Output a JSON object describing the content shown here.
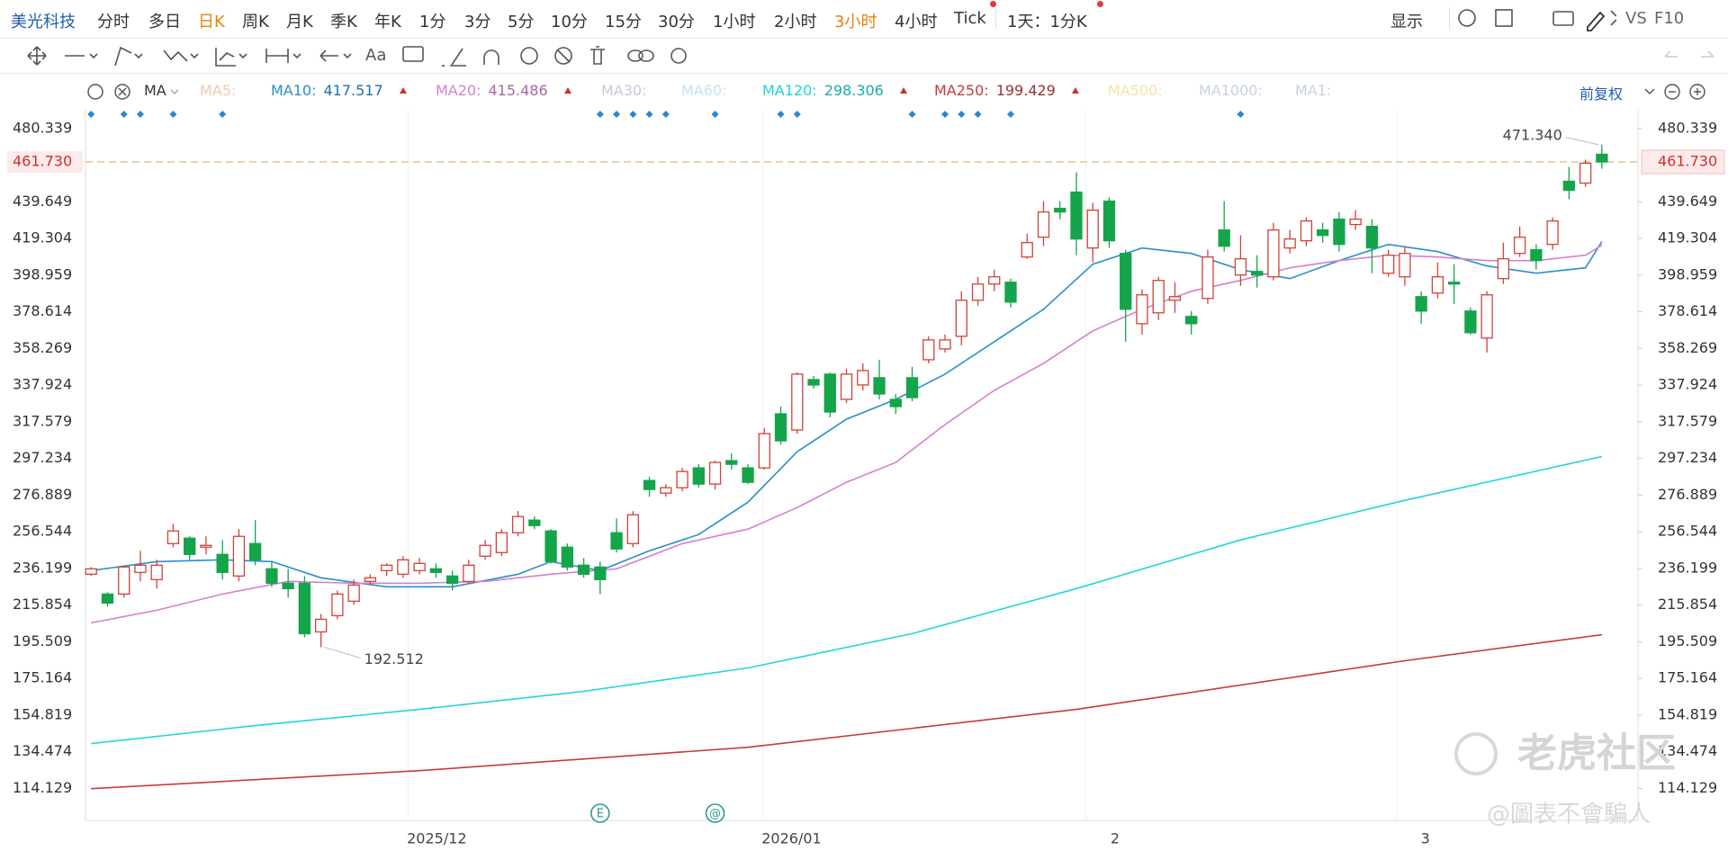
{
  "toolbar": {
    "symbol": "美光科技",
    "periods": [
      {
        "label": "分时"
      },
      {
        "label": "多日"
      },
      {
        "label": "日K",
        "active": true
      },
      {
        "label": "周K"
      },
      {
        "label": "月K"
      },
      {
        "label": "季K"
      },
      {
        "label": "年K"
      },
      {
        "label": "1分"
      },
      {
        "label": "3分"
      },
      {
        "label": "5分"
      },
      {
        "label": "10分"
      },
      {
        "label": "15分"
      },
      {
        "label": "30分"
      },
      {
        "label": "1小时"
      },
      {
        "label": "2小时"
      },
      {
        "label": "3小时",
        "active": true
      },
      {
        "label": "4小时"
      },
      {
        "label": "Tick"
      },
      {
        "label": "1天：1分K"
      }
    ],
    "display": "显示",
    "vs": "VS",
    "f10": "F10"
  },
  "drawing_toolbar": {
    "text_tool": "Aa"
  },
  "adjust": "前复权",
  "watermark": {
    "brand": "老虎社区",
    "handle": "@圖表不會騙人"
  },
  "chart_data": {
    "type": "candlestick",
    "indicator": "MA",
    "up_color": "#d0423a",
    "down_color": "#14a44a",
    "open": [
      233,
      222,
      222,
      234,
      230,
      250,
      253,
      248,
      244,
      232,
      250,
      236,
      228,
      228,
      201,
      210,
      218,
      229,
      235,
      233,
      235,
      236,
      232,
      229,
      243,
      245,
      256,
      263,
      257,
      248,
      238,
      237,
      256,
      250,
      285,
      278,
      281,
      292,
      283,
      296,
      292,
      292,
      322,
      313,
      341,
      344,
      330,
      338,
      342,
      330,
      342,
      352,
      358,
      365,
      385,
      394,
      395,
      409,
      420,
      436,
      445,
      414,
      440,
      411,
      372,
      378,
      385,
      376,
      386,
      424,
      399,
      401,
      398,
      414,
      418,
      424,
      430,
      427,
      426,
      400,
      398,
      387,
      389,
      395,
      379,
      364,
      397,
      411,
      413,
      416,
      451,
      450,
      466
    ],
    "high": [
      237,
      223,
      238,
      246,
      241,
      261,
      254,
      254,
      252,
      258,
      263,
      240,
      236,
      232,
      211,
      224,
      230,
      233,
      239,
      243,
      242,
      239,
      235,
      241,
      252,
      258,
      268,
      265,
      258,
      250,
      242,
      240,
      264,
      268,
      287,
      283,
      292,
      294,
      296,
      300,
      294,
      314,
      326,
      345,
      343,
      345,
      347,
      350,
      352,
      333,
      348,
      365,
      366,
      390,
      398,
      402,
      397,
      422,
      440,
      440,
      456,
      439,
      442,
      413,
      391,
      398,
      395,
      379,
      413,
      440,
      421,
      410,
      428,
      424,
      431,
      428,
      434,
      435,
      430,
      413,
      415,
      390,
      406,
      405,
      381,
      390,
      417,
      426,
      416,
      431,
      459,
      463,
      471.34
    ],
    "low": [
      232,
      215,
      220,
      229,
      225,
      248,
      241,
      244,
      230,
      229,
      238,
      226,
      220,
      198,
      192.512,
      208,
      216,
      227,
      232,
      231,
      233,
      231,
      224,
      228,
      241,
      243,
      254,
      258,
      239,
      235,
      231,
      222,
      245,
      248,
      276,
      276,
      279,
      281,
      280,
      291,
      283,
      291,
      305,
      311,
      336,
      320,
      328,
      335,
      330,
      322,
      329,
      350,
      356,
      360,
      382,
      390,
      381,
      408,
      415,
      430,
      410,
      406,
      414,
      362,
      366,
      374,
      378,
      366,
      383,
      412,
      393,
      392,
      396,
      411,
      415,
      417,
      412,
      424,
      400,
      398,
      393,
      372,
      386,
      383,
      366,
      356,
      394,
      409,
      402,
      413,
      441,
      448,
      458
    ],
    "close": [
      236,
      217,
      237,
      238,
      238,
      257,
      244,
      249,
      234,
      254,
      241,
      228,
      225,
      200,
      208,
      222,
      227,
      231,
      238,
      241,
      239,
      234,
      228,
      238,
      249,
      256,
      265,
      260,
      240,
      237,
      233,
      230,
      247,
      266,
      280,
      281,
      290,
      283,
      295,
      294,
      284,
      311,
      307,
      344,
      338,
      323,
      344,
      346,
      333,
      326,
      331,
      363,
      363,
      385,
      394,
      398,
      384,
      417,
      434,
      434,
      419,
      435,
      418,
      380,
      388,
      396,
      387,
      372,
      409,
      415,
      408,
      399,
      424,
      419,
      429,
      421,
      416,
      430,
      414,
      410,
      411,
      379,
      398,
      394,
      367,
      388,
      408,
      420,
      407,
      429,
      446,
      461,
      461.73
    ],
    "series": [
      {
        "name": "MA5:",
        "color": "#f3c6b4"
      },
      {
        "name": "MA10:",
        "color": "#2a8fc8",
        "x": [
          0,
          4,
          8,
          11,
          14,
          18,
          22,
          26,
          28,
          31,
          34,
          37,
          40,
          43,
          46,
          49,
          52,
          55,
          58,
          61,
          64,
          67,
          70,
          73,
          76,
          79,
          82,
          85,
          88,
          91,
          92
        ],
        "values": [
          235,
          240,
          241,
          240,
          231,
          226,
          226,
          233,
          240,
          235,
          246,
          255,
          273,
          301,
          319,
          330,
          344,
          362,
          380,
          405,
          414,
          411,
          402,
          397,
          407,
          416,
          412,
          404,
          400,
          403,
          417.517
        ]
      },
      {
        "name": "MA20:",
        "color": "#d67fce",
        "x": [
          0,
          4,
          8,
          12,
          16,
          20,
          24,
          28,
          32,
          36,
          40,
          43,
          46,
          49,
          52,
          55,
          58,
          61,
          64,
          67,
          70,
          73,
          76,
          79,
          82,
          85,
          88,
          91,
          92
        ],
        "values": [
          206,
          213,
          222,
          229,
          228,
          228,
          229,
          233,
          236,
          250,
          258,
          270,
          284,
          295,
          316,
          335,
          350,
          368,
          380,
          390,
          396,
          403,
          407,
          410,
          409,
          407,
          407,
          410,
          415.486
        ]
      },
      {
        "name": "MA30:",
        "color": "#c4cadc"
      },
      {
        "name": "MA60:",
        "color": "#c2e2f2"
      },
      {
        "name": "MA120:",
        "color": "#22d4d8",
        "x": [
          0,
          10,
          20,
          30,
          40,
          50,
          60,
          70,
          80,
          92
        ],
        "values": [
          139,
          149,
          158,
          168,
          181,
          200,
          225,
          252,
          274,
          298.306
        ]
      },
      {
        "name": "MA250:",
        "color": "#c63a3a",
        "x": [
          0,
          20,
          40,
          60,
          80,
          92
        ],
        "values": [
          114,
          124,
          137,
          158,
          185,
          199.429
        ]
      },
      {
        "name": "MA500:",
        "color": "#f6e2a4"
      },
      {
        "name": "MA1000:",
        "color": "#c8cfe0"
      },
      {
        "name": "MA1:",
        "color": "#c8cfe0"
      }
    ],
    "xlim": [
      -0.34,
      94.2
    ],
    "xticks": [
      {
        "value": 19.3,
        "label": "2025/12"
      },
      {
        "value": 40.9,
        "label": "2026/01"
      },
      {
        "value": 60.6,
        "label": "2"
      },
      {
        "value": 79.5,
        "label": "3"
      }
    ],
    "ylim": [
      96.4,
      490.7
    ],
    "yticks": [
      480.339,
      439.649,
      419.304,
      398.959,
      378.614,
      358.269,
      337.924,
      317.579,
      297.234,
      276.889,
      256.544,
      236.199,
      215.854,
      195.509,
      175.164,
      154.819,
      134.474,
      114.129
    ],
    "last_price": {
      "value": 461.73,
      "label": "461.730"
    },
    "high_label": {
      "value": 471.34,
      "label": "471.340"
    },
    "low_label": 192.512,
    "markers": [
      0,
      2,
      3,
      5,
      8,
      31,
      32,
      33,
      34,
      35,
      38,
      42,
      43,
      50,
      52,
      53,
      54,
      56,
      70
    ],
    "events": [
      {
        "x": 31,
        "label": "E"
      },
      {
        "x": 38,
        "label": "@"
      }
    ]
  }
}
